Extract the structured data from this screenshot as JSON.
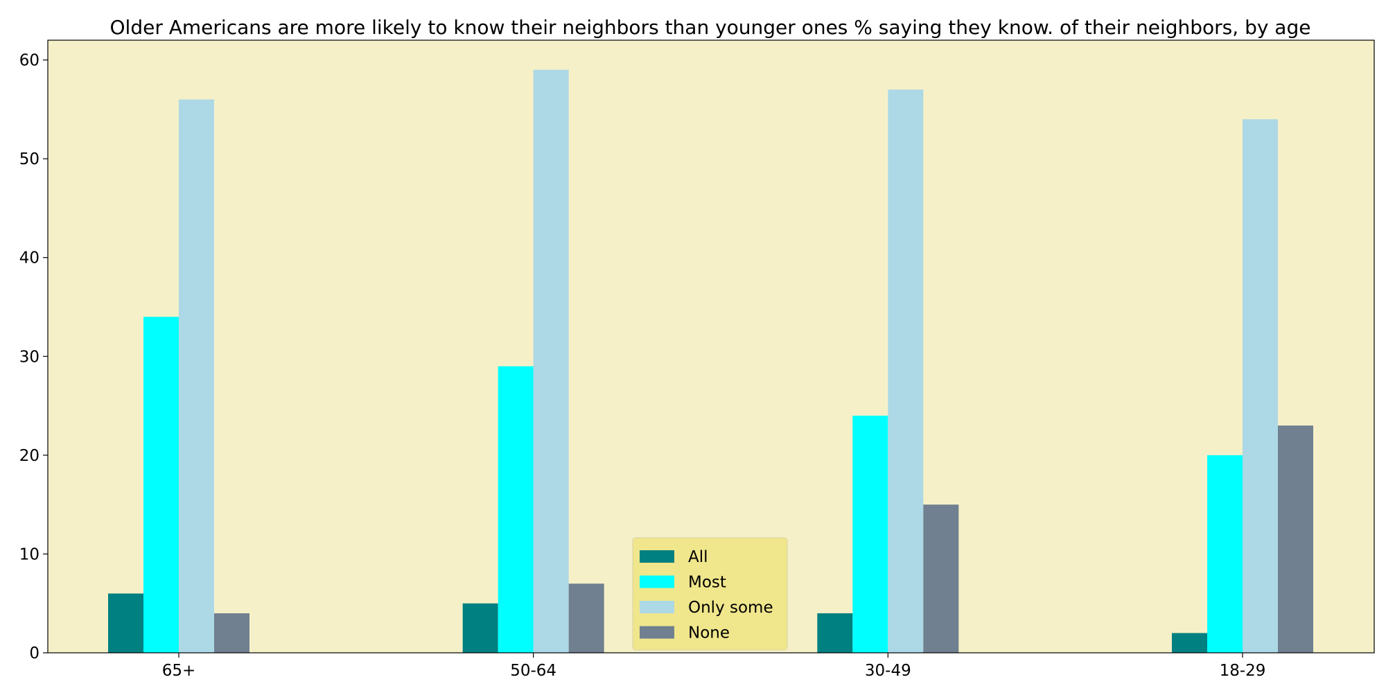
{
  "chart_data": {
    "type": "bar",
    "title": "Older Americans are more likely to know their neighbors than younger ones % saying they know. of their neighbors, by age",
    "xlabel": "",
    "ylabel": "",
    "categories": [
      "65+",
      "50-64",
      "30-49",
      "18-29"
    ],
    "series": [
      {
        "name": "All",
        "values": [
          6,
          5,
          4,
          2
        ],
        "color": "#008080"
      },
      {
        "name": "Most",
        "values": [
          34,
          29,
          24,
          20
        ],
        "color": "#00FFFF"
      },
      {
        "name": "Only some",
        "values": [
          56,
          59,
          57,
          54
        ],
        "color": "#ADD8E6"
      },
      {
        "name": "None",
        "values": [
          4,
          7,
          15,
          23
        ],
        "color": "#708090"
      }
    ],
    "ylim": [
      0,
      62
    ],
    "yticks": [
      0,
      10,
      20,
      30,
      40,
      50,
      60
    ],
    "grid": false,
    "legend_position": "lower center",
    "plot_background": "#F5F0C8",
    "legend_background": "#F0E68C"
  }
}
